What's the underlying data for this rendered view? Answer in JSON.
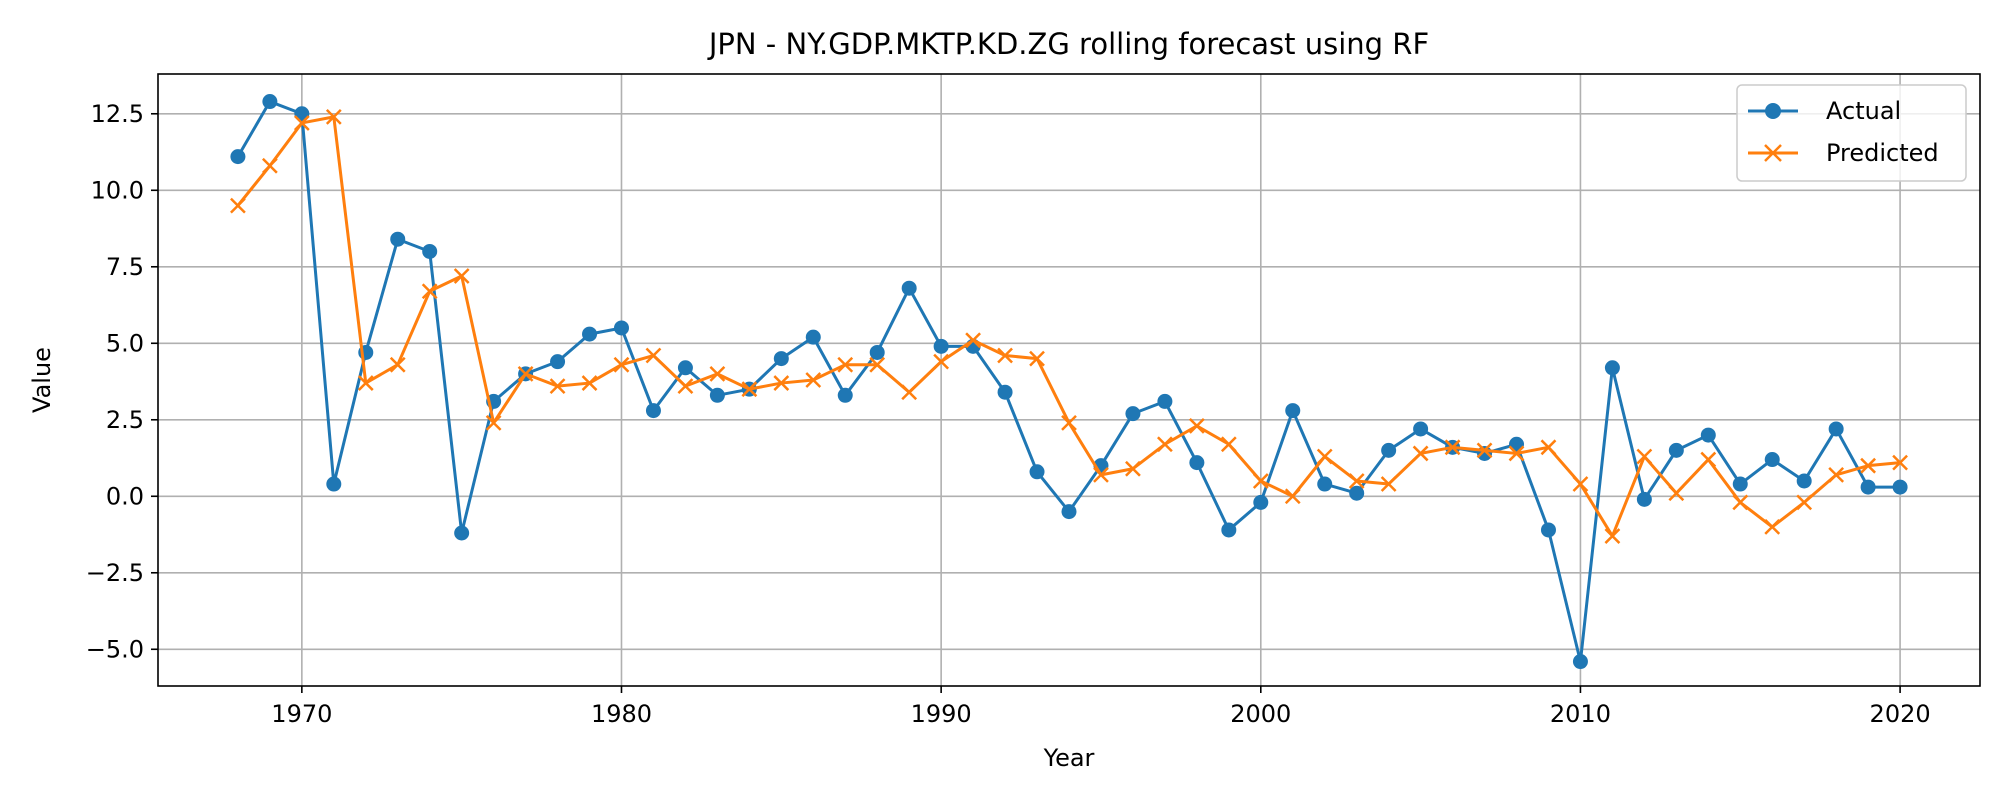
{
  "chart_data": {
    "type": "line",
    "title": "JPN - NY.GDP.MKTP.KD.ZG rolling forecast using RF",
    "xlabel": "Year",
    "ylabel": "Value",
    "xlim": [
      1965.5,
      2022.5
    ],
    "ylim": [
      -6.2,
      13.8
    ],
    "xticks": [
      1970,
      1980,
      1990,
      2000,
      2010,
      2020
    ],
    "yticks": [
      -5.0,
      -2.5,
      0.0,
      2.5,
      5.0,
      7.5,
      10.0,
      12.5
    ],
    "ytick_labels": [
      "−5.0",
      "−2.5",
      "0.0",
      "2.5",
      "5.0",
      "7.5",
      "10.0",
      "12.5"
    ],
    "grid": true,
    "legend_position": "top-right",
    "x": [
      1968,
      1969,
      1970,
      1971,
      1972,
      1973,
      1974,
      1975,
      1976,
      1977,
      1978,
      1979,
      1980,
      1981,
      1982,
      1983,
      1984,
      1985,
      1986,
      1987,
      1988,
      1989,
      1990,
      1991,
      1992,
      1993,
      1994,
      1995,
      1996,
      1997,
      1998,
      1999,
      2000,
      2001,
      2002,
      2003,
      2004,
      2005,
      2006,
      2007,
      2008,
      2009,
      2010,
      2011,
      2012,
      2013,
      2014,
      2015,
      2016,
      2017,
      2018,
      2019,
      2020
    ],
    "series": [
      {
        "name": "Actual",
        "color": "#1f77b4",
        "marker": "circle",
        "values": [
          11.1,
          12.9,
          12.5,
          0.4,
          4.7,
          8.4,
          8.0,
          -1.2,
          3.1,
          4.0,
          4.4,
          5.3,
          5.5,
          2.8,
          4.2,
          3.3,
          3.5,
          4.5,
          5.2,
          3.3,
          4.7,
          6.8,
          4.9,
          4.9,
          3.4,
          0.8,
          -0.5,
          1.0,
          2.7,
          3.1,
          1.1,
          -1.1,
          -0.2,
          2.8,
          0.4,
          0.1,
          1.5,
          2.2,
          1.6,
          1.4,
          1.7,
          -1.1,
          -5.4,
          4.2,
          -0.1,
          1.5,
          2.0,
          0.4,
          1.2,
          0.5,
          2.2,
          0.3,
          0.3
        ]
      },
      {
        "name": "Predicted",
        "color": "#ff7f0e",
        "marker": "x",
        "values": [
          9.5,
          10.8,
          12.2,
          12.4,
          3.7,
          4.3,
          6.7,
          7.2,
          2.4,
          4.0,
          3.6,
          3.7,
          4.3,
          4.6,
          3.6,
          4.0,
          3.5,
          3.7,
          3.8,
          4.3,
          4.3,
          3.4,
          4.4,
          5.1,
          4.6,
          4.5,
          2.4,
          0.7,
          0.9,
          1.7,
          2.3,
          1.7,
          0.5,
          0.0,
          1.3,
          0.5,
          0.4,
          1.4,
          1.6,
          1.5,
          1.4,
          1.6,
          0.4,
          -1.3,
          1.3,
          0.1,
          1.2,
          -0.2,
          -1.0,
          -0.2,
          0.7,
          1.0,
          1.1
        ]
      }
    ]
  }
}
